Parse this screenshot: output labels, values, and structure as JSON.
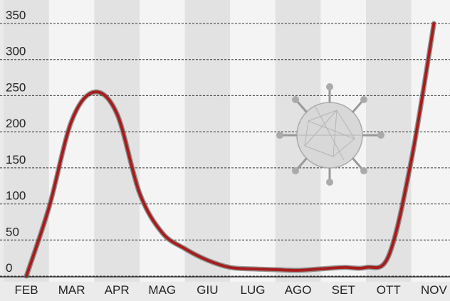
{
  "chart_data": {
    "type": "line",
    "categories": [
      "FEB",
      null,
      "MAR",
      null,
      "APR",
      null,
      "MAG",
      null,
      "GIU",
      null,
      "LUG",
      null,
      "AGO",
      null,
      "SET",
      null,
      "OTT",
      null,
      "NOV"
    ],
    "series": [
      {
        "name": null,
        "color": "#a81c1c",
        "values": [
          0,
          95,
          215,
          255,
          225,
          115,
          60,
          38,
          22,
          12,
          10,
          9,
          8,
          10,
          12,
          12,
          28,
          160,
          350
        ]
      }
    ],
    "ylim": [
      0,
      350
    ],
    "yticks": [
      0,
      50,
      100,
      150,
      200,
      250,
      300,
      350
    ],
    "grid": true
  }
}
